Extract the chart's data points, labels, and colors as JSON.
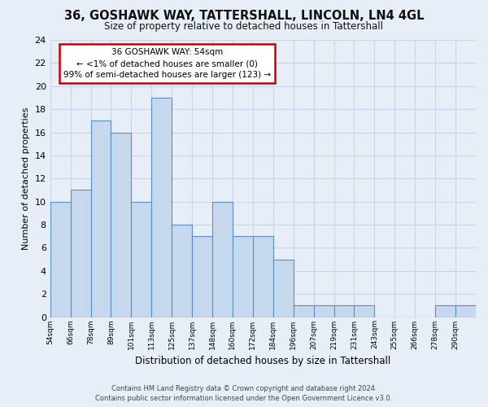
{
  "title_line1": "36, GOSHAWK WAY, TATTERSHALL, LINCOLN, LN4 4GL",
  "title_line2": "Size of property relative to detached houses in Tattershall",
  "xlabel": "Distribution of detached houses by size in Tattershall",
  "ylabel": "Number of detached properties",
  "bin_labels": [
    "54sqm",
    "66sqm",
    "78sqm",
    "89sqm",
    "101sqm",
    "113sqm",
    "125sqm",
    "137sqm",
    "148sqm",
    "160sqm",
    "172sqm",
    "184sqm",
    "196sqm",
    "207sqm",
    "219sqm",
    "231sqm",
    "243sqm",
    "255sqm",
    "266sqm",
    "278sqm",
    "290sqm"
  ],
  "bar_heights": [
    10,
    11,
    17,
    16,
    10,
    19,
    8,
    7,
    10,
    7,
    7,
    5,
    1,
    1,
    1,
    1,
    0,
    0,
    0,
    1,
    1
  ],
  "bar_color": "#c5d8ee",
  "bar_edge_color": "#5b8ec4",
  "ylim": [
    0,
    24
  ],
  "yticks": [
    0,
    2,
    4,
    6,
    8,
    10,
    12,
    14,
    16,
    18,
    20,
    22,
    24
  ],
  "annotation_title": "36 GOSHAWK WAY: 54sqm",
  "annotation_line2": "← <1% of detached houses are smaller (0)",
  "annotation_line3": "99% of semi-detached houses are larger (123) →",
  "annotation_box_color": "#ffffff",
  "annotation_box_edge_color": "#cc0000",
  "footer_line1": "Contains HM Land Registry data © Crown copyright and database right 2024.",
  "footer_line2": "Contains public sector information licensed under the Open Government Licence v3.0.",
  "background_color": "#e8eef8",
  "plot_bg_color": "#e8eef8",
  "grid_color": "#c8d4e8"
}
